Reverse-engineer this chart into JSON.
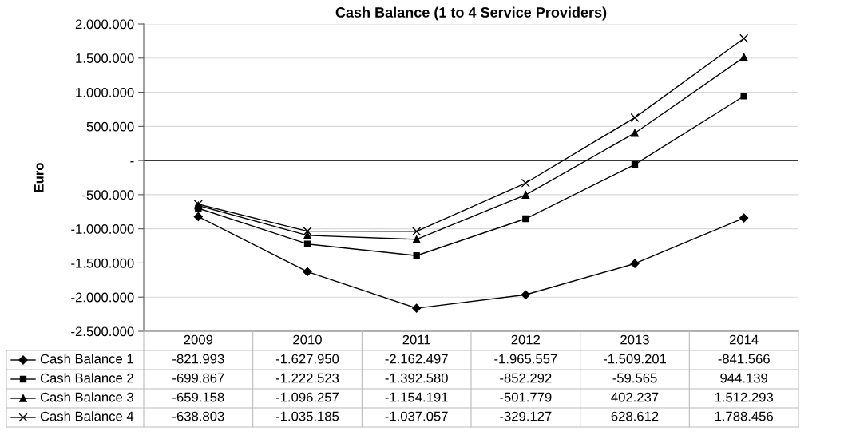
{
  "chart_data": {
    "type": "line",
    "title": "Cash Balance (1 to 4 Service Providers)",
    "ylabel": "Euro",
    "categories": [
      "2009",
      "2010",
      "2011",
      "2012",
      "2013",
      "2014"
    ],
    "series": [
      {
        "name": "Cash Balance 1",
        "color": "#000000",
        "marker": "diamond",
        "values": [
          -821993,
          -1627950,
          -2162497,
          -1965557,
          -1509201,
          -841566
        ],
        "value_labels": [
          "-821.993",
          "-1.627.950",
          "-2.162.497",
          "-1.965.557",
          "-1.509.201",
          "-841.566"
        ]
      },
      {
        "name": "Cash Balance 2",
        "color": "#000000",
        "marker": "square",
        "values": [
          -699867,
          -1222523,
          -1392580,
          -852292,
          -59565,
          944139
        ],
        "value_labels": [
          "-699.867",
          "-1.222.523",
          "-1.392.580",
          "-852.292",
          "-59.565",
          "944.139"
        ]
      },
      {
        "name": "Cash Balance 3",
        "color": "#000000",
        "marker": "triangle",
        "values": [
          -659158,
          -1096257,
          -1154191,
          -501779,
          402237,
          1512293
        ],
        "value_labels": [
          "-659.158",
          "-1.096.257",
          "-1.154.191",
          "-501.779",
          "402.237",
          "1.512.293"
        ]
      },
      {
        "name": "Cash Balance 4",
        "color": "#000000",
        "marker": "cross",
        "values": [
          -638803,
          -1035185,
          -1037057,
          -329127,
          628612,
          1788456
        ],
        "value_labels": [
          "-638.803",
          "-1.035.185",
          "-1.037.057",
          "-329.127",
          "628.612",
          "1.788.456"
        ]
      }
    ],
    "ylim": [
      -2500000,
      2000000
    ],
    "yticks": [
      {
        "value": -2500000,
        "label": "-2.500.000"
      },
      {
        "value": -2000000,
        "label": "-2.000.000"
      },
      {
        "value": -1500000,
        "label": "-1.500.000"
      },
      {
        "value": -1000000,
        "label": "-1.000.000"
      },
      {
        "value": -500000,
        "label": "-500.000"
      },
      {
        "value": 0,
        "label": "-"
      },
      {
        "value": 500000,
        "label": "500.000"
      },
      {
        "value": 1000000,
        "label": "1.000.000"
      },
      {
        "value": 1500000,
        "label": "1.500.000"
      },
      {
        "value": 2000000,
        "label": "2.000.000"
      }
    ],
    "ref_lines": [
      {
        "axis": "y",
        "value": 0,
        "color": "#000000"
      }
    ],
    "grid": "y",
    "legend": "bottom",
    "line_style": "solid"
  }
}
